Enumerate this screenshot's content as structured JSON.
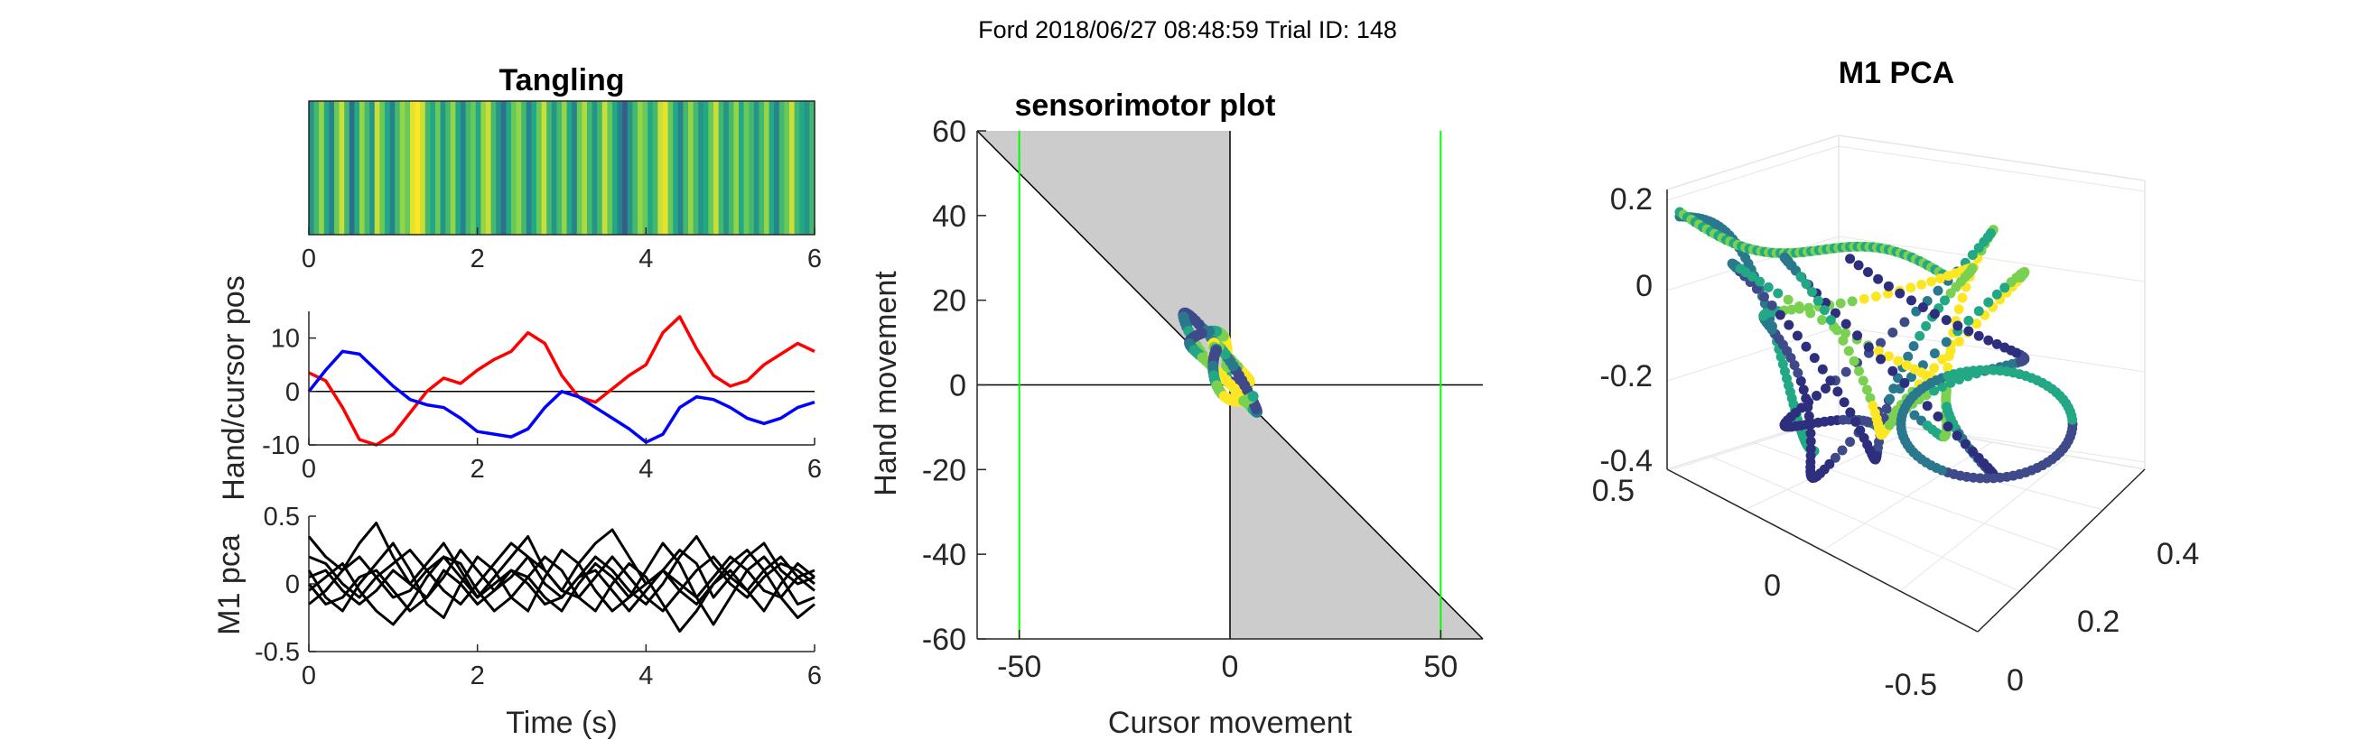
{
  "figure_title": "Ford 2018/06/27 08:48:59 Trial ID: 148",
  "chart_data": [
    {
      "id": "tangling",
      "type": "heatmap",
      "title": "Tangling",
      "xlim": [
        0,
        6
      ],
      "xticks": [
        "0",
        "2",
        "4",
        "6"
      ],
      "colormap": [
        "#3e4a89",
        "#2a788e",
        "#22a884",
        "#7ad151",
        "#fde725"
      ],
      "values": [
        0.4,
        0.6,
        0.8,
        0.5,
        0.3,
        0.7,
        0.9,
        0.6,
        0.2,
        0.5,
        0.8,
        0.6,
        0.4,
        0.9,
        0.7,
        0.5,
        0.3,
        0.6,
        0.8,
        0.7,
        0.95,
        1,
        0.9,
        0.6,
        0.5,
        0.7,
        0.4,
        0.6,
        0.8,
        0.5,
        0.3,
        0.6,
        0.7,
        0.5,
        0.8,
        0.9,
        0.6,
        0.4,
        0.2,
        0.5,
        0.7,
        0.8,
        0.6,
        0.3,
        0.5,
        0.7,
        0.9,
        0.6,
        0.4,
        0.6,
        0.8,
        0.5,
        0.3,
        0.7,
        0.85,
        0.6,
        0.4,
        0.6,
        0.9,
        0.7,
        0.5,
        0.3,
        0.1,
        0.4,
        0.6,
        0.8,
        0.7,
        0.5,
        0.6,
        0.9,
        0.95,
        0.7,
        0.5,
        0.3,
        0.6,
        0.8,
        0.6,
        0.4,
        0.5,
        0.7,
        0.9,
        0.6,
        0.4,
        0.6,
        0.8,
        0.5,
        0.7,
        0.6,
        0.4,
        0.6,
        0.8,
        0.5,
        0.3,
        0.6,
        0.7,
        0.9,
        0.6,
        0.5,
        0.4,
        0.6
      ]
    },
    {
      "id": "hand-cursor",
      "type": "line",
      "ylabel": "Hand/cursor pos",
      "xlim": [
        0,
        6
      ],
      "ylim": [
        -10,
        15
      ],
      "xticks": [
        "0",
        "2",
        "4",
        "6"
      ],
      "yticks": [
        "-10",
        "0",
        "10"
      ],
      "series": [
        {
          "color": "#ff0000",
          "x": [
            0,
            0.2,
            0.4,
            0.6,
            0.8,
            1.0,
            1.2,
            1.4,
            1.6,
            1.8,
            2.0,
            2.2,
            2.4,
            2.6,
            2.8,
            3.0,
            3.2,
            3.4,
            3.6,
            3.8,
            4.0,
            4.2,
            4.4,
            4.6,
            4.8,
            5.0,
            5.2,
            5.4,
            5.6,
            5.8,
            6.0
          ],
          "y": [
            3.5,
            2,
            -3,
            -9,
            -10,
            -8,
            -4,
            0,
            2.5,
            1.5,
            4,
            6,
            7.5,
            11,
            9,
            3,
            -1,
            -2,
            0.5,
            3,
            5,
            11,
            14,
            8,
            3,
            1,
            2,
            5,
            7,
            9,
            7.5
          ]
        },
        {
          "color": "#0000ff",
          "x": [
            0,
            0.2,
            0.4,
            0.6,
            0.8,
            1.0,
            1.2,
            1.4,
            1.6,
            1.8,
            2.0,
            2.2,
            2.4,
            2.6,
            2.8,
            3.0,
            3.2,
            3.4,
            3.6,
            3.8,
            4.0,
            4.2,
            4.4,
            4.6,
            4.8,
            5.0,
            5.2,
            5.4,
            5.6,
            5.8,
            6.0
          ],
          "y": [
            0,
            4,
            7.5,
            7,
            4,
            1,
            -1.5,
            -2.5,
            -3,
            -5,
            -7.5,
            -8,
            -8.5,
            -7,
            -3,
            0,
            -1,
            -3,
            -5,
            -7,
            -9.5,
            -8,
            -3,
            -1,
            -1.5,
            -3,
            -5,
            -6,
            -5,
            -3,
            -2
          ]
        }
      ],
      "zero_line": true
    },
    {
      "id": "m1-pca-traces",
      "type": "line",
      "xlabel": "Time (s)",
      "ylabel": "M1 pca",
      "xlim": [
        0,
        6
      ],
      "ylim": [
        -0.5,
        0.5
      ],
      "xticks": [
        "0",
        "2",
        "4",
        "6"
      ],
      "yticks": [
        "-0.5",
        "0",
        "0.5"
      ],
      "series": [
        {
          "color": "#000000",
          "y": [
            0.35,
            0.2,
            0.1,
            0.3,
            0.45,
            0.2,
            0,
            0.15,
            0.3,
            0.1,
            -0.1,
            0.05,
            0.2,
            0.35,
            0.1,
            -0.05,
            0.15,
            0.3,
            0.4,
            0.2,
            0,
            0.1,
            0.25,
            0.15,
            -0.1,
            0.05,
            0.2,
            0.3,
            0.1,
            0,
            0.05
          ]
        },
        {
          "color": "#000000",
          "y": [
            0.1,
            -0.1,
            -0.2,
            0,
            0.15,
            0.3,
            0.1,
            -0.15,
            -0.25,
            0,
            0.2,
            0.1,
            -0.1,
            -0.2,
            0.05,
            0.25,
            0.15,
            -0.05,
            -0.2,
            -0.1,
            0.1,
            0.3,
            0.15,
            -0.1,
            -0.3,
            -0.1,
            0.1,
            0.2,
            0.05,
            -0.15,
            -0.1
          ]
        },
        {
          "color": "#000000",
          "y": [
            -0.05,
            0.05,
            0.15,
            -0.05,
            -0.2,
            -0.3,
            -0.15,
            0.05,
            0.2,
            0.15,
            -0.05,
            -0.2,
            -0.1,
            0.05,
            0.2,
            0.1,
            -0.1,
            -0.2,
            0,
            0.15,
            0.05,
            -0.15,
            -0.35,
            -0.2,
            0,
            0.15,
            0.25,
            0.1,
            -0.1,
            -0.25,
            -0.15
          ]
        },
        {
          "color": "#000000",
          "y": [
            0.2,
            0.15,
            0,
            -0.1,
            0.05,
            0.15,
            0.25,
            0.1,
            -0.05,
            -0.15,
            0,
            0.15,
            0.3,
            0.2,
            0,
            -0.1,
            0.05,
            0.2,
            0.1,
            -0.05,
            -0.15,
            0,
            0.2,
            0.35,
            0.15,
            0,
            -0.1,
            0.05,
            0.15,
            0.1,
            0
          ]
        },
        {
          "color": "#000000",
          "y": [
            -0.15,
            -0.05,
            0.1,
            0.2,
            0.05,
            -0.1,
            -0.05,
            0.1,
            0.2,
            0.05,
            -0.1,
            0,
            0.1,
            0,
            -0.15,
            -0.1,
            0.05,
            0.1,
            -0.05,
            -0.2,
            -0.05,
            0.1,
            0,
            -0.1,
            0.05,
            0.2,
            0.1,
            -0.05,
            -0.1,
            0.05,
            0.1
          ]
        },
        {
          "color": "#000000",
          "y": [
            0.05,
            0.1,
            -0.05,
            -0.15,
            -0.05,
            0.1,
            0,
            -0.1,
            0.05,
            0.25,
            0.1,
            -0.05,
            0.05,
            0.2,
            0.1,
            -0.05,
            -0.1,
            0.05,
            0.2,
            0.05,
            -0.1,
            -0.2,
            -0.05,
            0.1,
            0.2,
            0.05,
            -0.05,
            0.1,
            0.2,
            0.05,
            -0.05
          ]
        },
        {
          "color": "#000000",
          "y": [
            0,
            -0.15,
            -0.1,
            0.05,
            0.1,
            -0.05,
            -0.2,
            -0.1,
            0.1,
            0,
            -0.15,
            -0.05,
            0.1,
            0.05,
            -0.1,
            -0.2,
            0,
            0.15,
            0.05,
            -0.1,
            0,
            0.1,
            -0.05,
            -0.15,
            0,
            0.1,
            -0.05,
            -0.2,
            0,
            0.15,
            0.05
          ]
        }
      ]
    },
    {
      "id": "sensorimotor",
      "type": "scatter",
      "title": "sensorimotor plot",
      "xlabel": "Cursor movement",
      "ylabel": "Hand movement",
      "xlim": [
        -60,
        60
      ],
      "ylim": [
        -60,
        60
      ],
      "xticks": [
        "-50",
        "0",
        "50"
      ],
      "yticks": [
        "-60",
        "-40",
        "-20",
        "0",
        "20",
        "40",
        "60"
      ],
      "vlines": [
        -50,
        50
      ],
      "vline_color": "#00ff00",
      "shade_color": "#cccccc",
      "loop_colors": [
        "#3e4a89",
        "#2a788e",
        "#22a884",
        "#7ad151",
        "#fde725"
      ]
    },
    {
      "id": "m1-pca-3d",
      "type": "scatter",
      "title": "M1 PCA",
      "zticks": [
        "0.2",
        "0",
        "-0.2",
        "-0.4"
      ],
      "yticks": [
        "0.5",
        "0",
        "-0.5"
      ],
      "xticks": [
        "0",
        "0.2",
        "0.4"
      ],
      "point_colors": [
        "#2d2f7e",
        "#3e4a89",
        "#2a788e",
        "#22a884",
        "#7ad151",
        "#fde725"
      ]
    }
  ]
}
